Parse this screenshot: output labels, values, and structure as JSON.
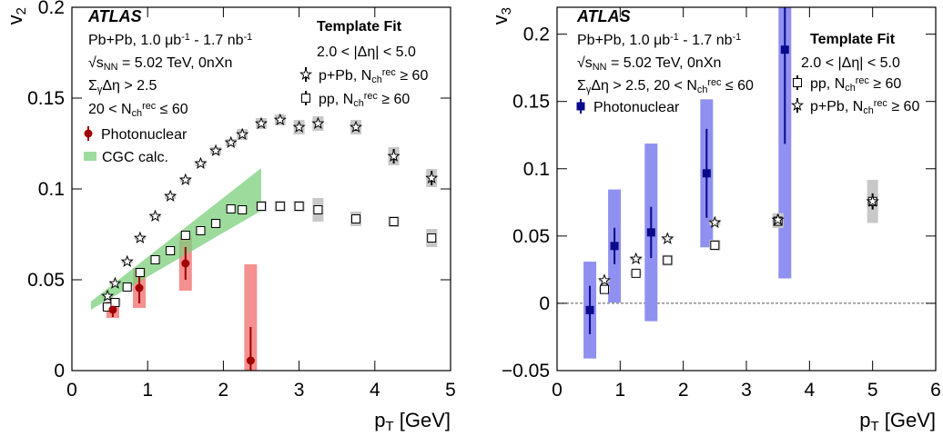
{
  "chart_data": [
    {
      "type": "scatter",
      "atlas_label": "ATLAS",
      "info_lines": [
        [
          "Pb+Pb, 1.0 μb",
          {
            "sup": "-1"
          },
          " - 1.7 nb",
          {
            "sup": "-1"
          }
        ],
        [
          "√s",
          {
            "sub": "NN"
          },
          " = 5.02 TeV, 0nXn"
        ],
        [
          "Σ",
          {
            "sub": "γ"
          },
          "Δη > 2.5"
        ],
        [
          "20 < N",
          {
            "sub": "ch"
          },
          {
            "sup": "rec"
          },
          " ≤ 60"
        ]
      ],
      "fit_title": "Template Fit",
      "fit_range": "2.0 < |Δη| < 5.0",
      "x_label": [
        "p",
        {
          "sub": "T"
        },
        " [GeV]"
      ],
      "y_label": [
        "v",
        {
          "sub": "2"
        }
      ],
      "xlim": [
        0,
        5
      ],
      "ylim": [
        0,
        0.2
      ],
      "xticks": [
        0,
        1,
        2,
        3,
        4,
        5
      ],
      "yticks": [
        0,
        0.05,
        0.1,
        0.15,
        0.2
      ],
      "zero_line": false,
      "series": [
        {
          "name": [
            "p+Pb, N",
            {
              "sub": "ch"
            },
            {
              "sup": "rec"
            },
            " ≥ 60"
          ],
          "marker": "star",
          "color": "#000000",
          "box_color": "#c8c8c8",
          "x": [
            0.47,
            0.57,
            0.73,
            0.9,
            1.1,
            1.3,
            1.5,
            1.7,
            1.9,
            2.1,
            2.25,
            2.5,
            2.75,
            3.0,
            3.25,
            3.75,
            4.25,
            4.75
          ],
          "values": [
            0.041,
            0.048,
            0.06,
            0.073,
            0.085,
            0.096,
            0.105,
            0.114,
            0.121,
            0.1255,
            0.13,
            0.136,
            0.138,
            0.134,
            0.136,
            0.134,
            0.118,
            0.106
          ],
          "stat": [
            0.0005,
            0.0005,
            0.0005,
            0.0005,
            0.0005,
            0.0005,
            0.0005,
            0.0005,
            0.0005,
            0.0005,
            0.001,
            0.001,
            0.001,
            0.001,
            0.001,
            0.002,
            0.004,
            0.004
          ],
          "syst": [
            0.001,
            0.001,
            0.001,
            0.001,
            0.001,
            0.0015,
            0.0015,
            0.0015,
            0.002,
            0.002,
            0.003,
            0.003,
            0.003,
            0.004,
            0.004,
            0.004,
            0.005,
            0.005
          ]
        },
        {
          "name": [
            "pp,   N",
            {
              "sub": "ch"
            },
            {
              "sup": "rec"
            },
            " ≥ 60"
          ],
          "marker": "open-square",
          "color": "#000000",
          "box_color": "#c8c8c8",
          "x": [
            0.47,
            0.57,
            0.73,
            0.9,
            1.1,
            1.3,
            1.5,
            1.7,
            1.9,
            2.1,
            2.25,
            2.5,
            2.75,
            3.0,
            3.25,
            3.75,
            4.25,
            4.75
          ],
          "values": [
            0.035,
            0.0375,
            0.046,
            0.054,
            0.061,
            0.066,
            0.0745,
            0.077,
            0.081,
            0.089,
            0.0885,
            0.0905,
            0.0905,
            0.0905,
            0.0885,
            0.0835,
            0.082,
            0.073
          ],
          "stat": [
            0.0005,
            0.0005,
            0.0005,
            0.0005,
            0.0005,
            0.0005,
            0.0005,
            0.0005,
            0.0005,
            0.0005,
            0.0005,
            0.001,
            0.001,
            0.001,
            0.001,
            0.001,
            0.002,
            0.002
          ],
          "syst": [
            0.002,
            0.002,
            0.002,
            0.002,
            0.002,
            0.002,
            0.002,
            0.002,
            0.002,
            0.002,
            0.002,
            0.003,
            0.003,
            0.003,
            0.0065,
            0.004,
            0.003,
            0.005
          ]
        },
        {
          "name": "Photonuclear",
          "marker": "circle",
          "color": "#a00000",
          "box_color": "#f4908f",
          "x": [
            0.54,
            0.89,
            1.5,
            2.36
          ],
          "values": [
            0.0335,
            0.0455,
            0.059,
            0.0055
          ],
          "stat": [
            0.004,
            0.0085,
            0.009,
            0.0185
          ],
          "syst": [
            0.0045,
            0.011,
            0.015,
            0.053
          ]
        },
        {
          "name": "CGC calc.",
          "marker": "band",
          "color": "#7ccf7c",
          "x": [
            0.25,
            2.5
          ],
          "upper": [
            0.038,
            0.1115
          ],
          "lower": [
            0.0335,
            0.088
          ]
        }
      ]
    },
    {
      "type": "scatter",
      "atlas_label": "ATLAS",
      "info_lines": [
        [
          "Pb+Pb, 1.0 μb",
          {
            "sup": "-1"
          },
          " - 1.7 nb",
          {
            "sup": "-1"
          }
        ],
        [
          "√s",
          {
            "sub": "NN"
          },
          " = 5.02 TeV, 0nXn"
        ],
        [
          "Σ",
          {
            "sub": "γ"
          },
          "Δη > 2.5, 20 < N",
          {
            "sub": "ch"
          },
          {
            "sup": "rec"
          },
          " ≤ 60"
        ]
      ],
      "fit_title": "Template Fit",
      "fit_range": "2.0 < |Δη| < 5.0",
      "x_label": [
        "p",
        {
          "sub": "T"
        },
        " [GeV]"
      ],
      "y_label": [
        "v",
        {
          "sub": "3"
        }
      ],
      "xlim": [
        0,
        6
      ],
      "ylim": [
        -0.05,
        0.22
      ],
      "xticks": [
        0,
        1,
        2,
        3,
        4,
        5,
        6
      ],
      "yticks": [
        {
          "value": -0.05,
          "label": "−0.05"
        },
        0,
        0.05,
        0.1,
        0.15,
        0.2
      ],
      "zero_line": true,
      "series": [
        {
          "name": "Photonuclear",
          "marker": "square",
          "color": "#0a0a8a",
          "box_color": "#9090f0",
          "x": [
            0.52,
            0.91,
            1.49,
            2.37,
            3.61
          ],
          "values": [
            -0.005,
            0.0426,
            0.0527,
            0.0966,
            0.1885
          ],
          "stat": [
            0.018,
            0.0135,
            0.019,
            0.033,
            0.07
          ],
          "syst": [
            0.036,
            0.042,
            0.066,
            0.055,
            0.17
          ]
        },
        {
          "name": [
            "pp,   N",
            {
              "sub": "ch"
            },
            {
              "sup": "rec"
            },
            " ≥ 60"
          ],
          "marker": "open-square",
          "color": "#000000",
          "box_color": "#c8c8c8",
          "x": [
            0.75,
            1.25,
            1.75,
            2.5,
            3.5,
            5.0
          ],
          "values": [
            0.0103,
            0.0223,
            0.032,
            0.0432,
            0.061,
            0.0757
          ],
          "stat": [
            0.001,
            0.001,
            0.001,
            0.002,
            0.003,
            0.003
          ],
          "syst": [
            0.002,
            0.002,
            0.004,
            0.004,
            0.005,
            0.016
          ]
        },
        {
          "name": [
            "p+Pb, N",
            {
              "sub": "ch"
            },
            {
              "sup": "rec"
            },
            " ≥ 60"
          ],
          "marker": "star",
          "color": "#000000",
          "box_color": "#c8c8c8",
          "x": [
            0.75,
            1.25,
            1.75,
            2.5,
            3.5,
            5.0
          ],
          "values": [
            0.017,
            0.033,
            0.048,
            0.06,
            0.062,
            0.0757
          ],
          "stat": [
            0.001,
            0.001,
            0.001,
            0.002,
            0.004,
            0.006
          ],
          "syst": [
            0.001,
            0.001,
            0.001,
            0.002,
            0.005,
            0.005
          ]
        }
      ]
    }
  ]
}
